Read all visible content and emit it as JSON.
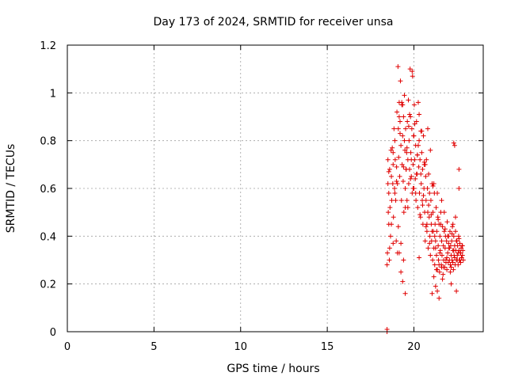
{
  "chart_data": {
    "type": "scatter",
    "title": "Day 173 of 2024, SRMTID for receiver unsa",
    "xlabel": "GPS time / hours",
    "ylabel": "SRMTID / TECUs",
    "xlim": [
      0,
      24
    ],
    "ylim": [
      0,
      1.2
    ],
    "xticks": [
      0,
      5,
      10,
      15,
      20
    ],
    "xtick_labels": [
      "0",
      "5",
      "10",
      "15",
      "20"
    ],
    "yticks": [
      0,
      0.2,
      0.4,
      0.6,
      0.8,
      1,
      1.2
    ],
    "ytick_labels": [
      "0",
      "0.2",
      "0.4",
      "0.6",
      "0.8",
      "1",
      "1.2"
    ],
    "grid": true,
    "marker": "+",
    "series": [
      {
        "name": "SRMTID",
        "color": "#e00000",
        "x": [
          18.45,
          18.47,
          18.5,
          18.52,
          18.55,
          18.55,
          18.58,
          18.6,
          18.62,
          18.65,
          18.68,
          18.7,
          18.72,
          18.75,
          18.78,
          18.8,
          18.82,
          18.85,
          18.88,
          18.9,
          18.92,
          18.95,
          18.98,
          19.0,
          19.02,
          19.05,
          19.08,
          19.1,
          19.12,
          19.15,
          19.18,
          19.2,
          19.22,
          19.25,
          19.28,
          19.3,
          19.32,
          19.35,
          19.38,
          19.4,
          19.42,
          19.45,
          19.48,
          19.5,
          19.52,
          19.55,
          19.58,
          19.6,
          19.62,
          19.65,
          19.68,
          19.7,
          19.72,
          19.75,
          19.78,
          19.8,
          19.82,
          19.85,
          19.88,
          19.9,
          19.92,
          19.95,
          19.98,
          20.0,
          20.02,
          20.05,
          20.08,
          20.1,
          20.12,
          20.15,
          20.18,
          20.2,
          20.22,
          20.25,
          20.28,
          20.3,
          20.32,
          20.35,
          20.38,
          20.4,
          20.42,
          20.45,
          20.48,
          20.5,
          20.52,
          20.55,
          20.58,
          20.6,
          20.62,
          20.65,
          20.68,
          20.7,
          20.72,
          20.75,
          20.78,
          20.8,
          20.82,
          20.85,
          20.88,
          20.9,
          20.92,
          20.95,
          20.98,
          21.0,
          21.02,
          21.05,
          21.08,
          21.1,
          21.12,
          21.15,
          21.18,
          21.2,
          21.22,
          21.25,
          21.28,
          21.3,
          21.32,
          21.35,
          21.38,
          21.4,
          21.42,
          21.45,
          21.48,
          21.5,
          21.52,
          21.55,
          21.58,
          21.6,
          21.62,
          21.65,
          21.68,
          21.7,
          21.72,
          21.75,
          21.78,
          21.8,
          21.82,
          21.85,
          21.88,
          21.9,
          21.92,
          21.95,
          21.98,
          22.0,
          22.02,
          22.05,
          22.08,
          22.1,
          22.12,
          22.15,
          22.18,
          22.2,
          22.22,
          22.25,
          22.28,
          22.3,
          22.32,
          22.35,
          22.38,
          22.4,
          22.42,
          22.45,
          22.48,
          22.5,
          22.52,
          22.55,
          22.58,
          22.6,
          22.62,
          22.65,
          22.68,
          22.7,
          22.72,
          22.75,
          22.78,
          22.8,
          22.82,
          22.85,
          18.5,
          18.6,
          18.7,
          18.8,
          18.9,
          19.0,
          19.1,
          19.2,
          19.3,
          19.4,
          19.5,
          19.6,
          19.7,
          19.8,
          19.9,
          20.0,
          20.1,
          20.2,
          20.3,
          20.4,
          20.5,
          20.6,
          20.7,
          20.8,
          20.9,
          21.0,
          21.1,
          21.2,
          21.3,
          21.4,
          21.5,
          21.6,
          21.7,
          21.8,
          21.9,
          22.0,
          22.1,
          22.2,
          22.3,
          22.4,
          22.5,
          22.6,
          22.7,
          22.8,
          19.05,
          19.15,
          19.25,
          19.35,
          19.45,
          19.55,
          19.65,
          19.75,
          19.85,
          19.95,
          20.05,
          20.15,
          20.25,
          20.35,
          20.45,
          20.55,
          20.65,
          20.75,
          20.85,
          20.95,
          21.05,
          21.15,
          21.25,
          21.35,
          21.45,
          21.55,
          21.65,
          21.75,
          21.85,
          21.95,
          22.05,
          22.15,
          22.25,
          22.35,
          22.45,
          22.55,
          22.65,
          22.75
        ],
        "y": [
          0.28,
          0.33,
          0.62,
          0.5,
          0.58,
          0.45,
          0.3,
          0.68,
          0.52,
          0.4,
          0.76,
          0.65,
          0.55,
          0.77,
          0.62,
          0.7,
          0.48,
          0.85,
          0.6,
          0.8,
          0.72,
          0.55,
          0.38,
          0.69,
          0.92,
          0.62,
          1.11,
          0.85,
          0.73,
          0.96,
          0.65,
          0.88,
          1.05,
          0.78,
          0.55,
          0.95,
          0.7,
          0.82,
          0.63,
          0.9,
          0.5,
          0.99,
          0.76,
          0.6,
          0.85,
          0.68,
          0.75,
          0.55,
          0.88,
          0.72,
          0.97,
          0.62,
          0.8,
          0.68,
          1.1,
          0.9,
          0.75,
          0.65,
          0.85,
          0.58,
          1.07,
          0.7,
          0.82,
          0.6,
          0.95,
          0.72,
          0.64,
          0.78,
          0.55,
          0.88,
          0.66,
          0.74,
          0.52,
          0.96,
          0.69,
          0.8,
          0.58,
          0.72,
          0.48,
          0.84,
          0.62,
          0.75,
          0.55,
          0.68,
          0.45,
          0.82,
          0.6,
          0.7,
          0.5,
          0.38,
          0.65,
          0.55,
          0.72,
          0.42,
          0.6,
          0.5,
          0.35,
          0.66,
          0.48,
          0.58,
          0.4,
          0.32,
          0.55,
          0.45,
          0.38,
          0.62,
          0.3,
          0.5,
          0.42,
          0.35,
          0.58,
          0.28,
          0.45,
          0.38,
          0.52,
          0.32,
          0.42,
          0.26,
          0.48,
          0.36,
          0.3,
          0.45,
          0.25,
          0.4,
          0.34,
          0.5,
          0.28,
          0.38,
          0.32,
          0.44,
          0.24,
          0.36,
          0.3,
          0.42,
          0.27,
          0.35,
          0.4,
          0.3,
          0.38,
          0.26,
          0.46,
          0.33,
          0.29,
          0.4,
          0.35,
          0.3,
          0.42,
          0.28,
          0.36,
          0.32,
          0.38,
          0.3,
          0.44,
          0.34,
          0.26,
          0.4,
          0.32,
          0.36,
          0.28,
          0.42,
          0.34,
          0.3,
          0.38,
          0.32,
          0.36,
          0.28,
          0.4,
          0.34,
          0.3,
          0.37,
          0.33,
          0.29,
          0.35,
          0.31,
          0.36,
          0.32,
          0.34,
          0.3,
          0.72,
          0.35,
          0.45,
          0.75,
          0.58,
          0.63,
          0.44,
          0.83,
          0.96,
          0.69,
          0.52,
          0.77,
          0.86,
          0.64,
          1.09,
          0.82,
          0.58,
          0.74,
          0.91,
          0.66,
          0.53,
          0.71,
          0.44,
          0.85,
          0.37,
          0.49,
          0.61,
          0.4,
          0.26,
          0.47,
          0.33,
          0.55,
          0.27,
          0.43,
          0.31,
          0.37,
          0.25,
          0.41,
          0.34,
          0.48,
          0.3,
          0.39,
          0.33,
          0.36,
          0.33,
          0.9,
          0.37,
          0.95,
          0.8,
          0.68,
          0.52,
          0.91,
          0.72,
          0.6,
          0.87,
          0.66,
          0.78,
          0.49,
          0.84,
          0.57,
          0.7,
          0.45,
          0.53,
          0.76,
          0.42,
          0.62,
          0.35,
          0.58,
          0.28,
          0.45,
          0.22,
          0.5,
          0.29,
          0.4,
          0.35,
          0.27,
          0.45,
          0.31,
          0.38,
          0.33,
          0.3,
          0.31
        ]
      }
    ],
    "outliers": {
      "x": [
        18.8,
        19.25,
        19.35,
        19.5,
        19.15,
        21.05,
        21.45,
        21.25,
        21.6,
        22.15,
        22.3,
        22.45,
        18.55,
        19.4,
        20.3,
        21.15,
        21.35,
        22.25,
        22.35,
        22.6,
        22.6
      ],
      "y": [
        0.37,
        0.25,
        0.21,
        0.16,
        0.33,
        0.16,
        0.14,
        0.19,
        0.27,
        0.2,
        0.79,
        0.17,
        0.67,
        0.3,
        0.31,
        0.23,
        0.17,
        0.29,
        0.78,
        0.68,
        0.6
      ]
    },
    "zero_marker": {
      "x": [
        18.45,
        18.45
      ],
      "y": [
        0.0,
        0.01
      ]
    }
  }
}
